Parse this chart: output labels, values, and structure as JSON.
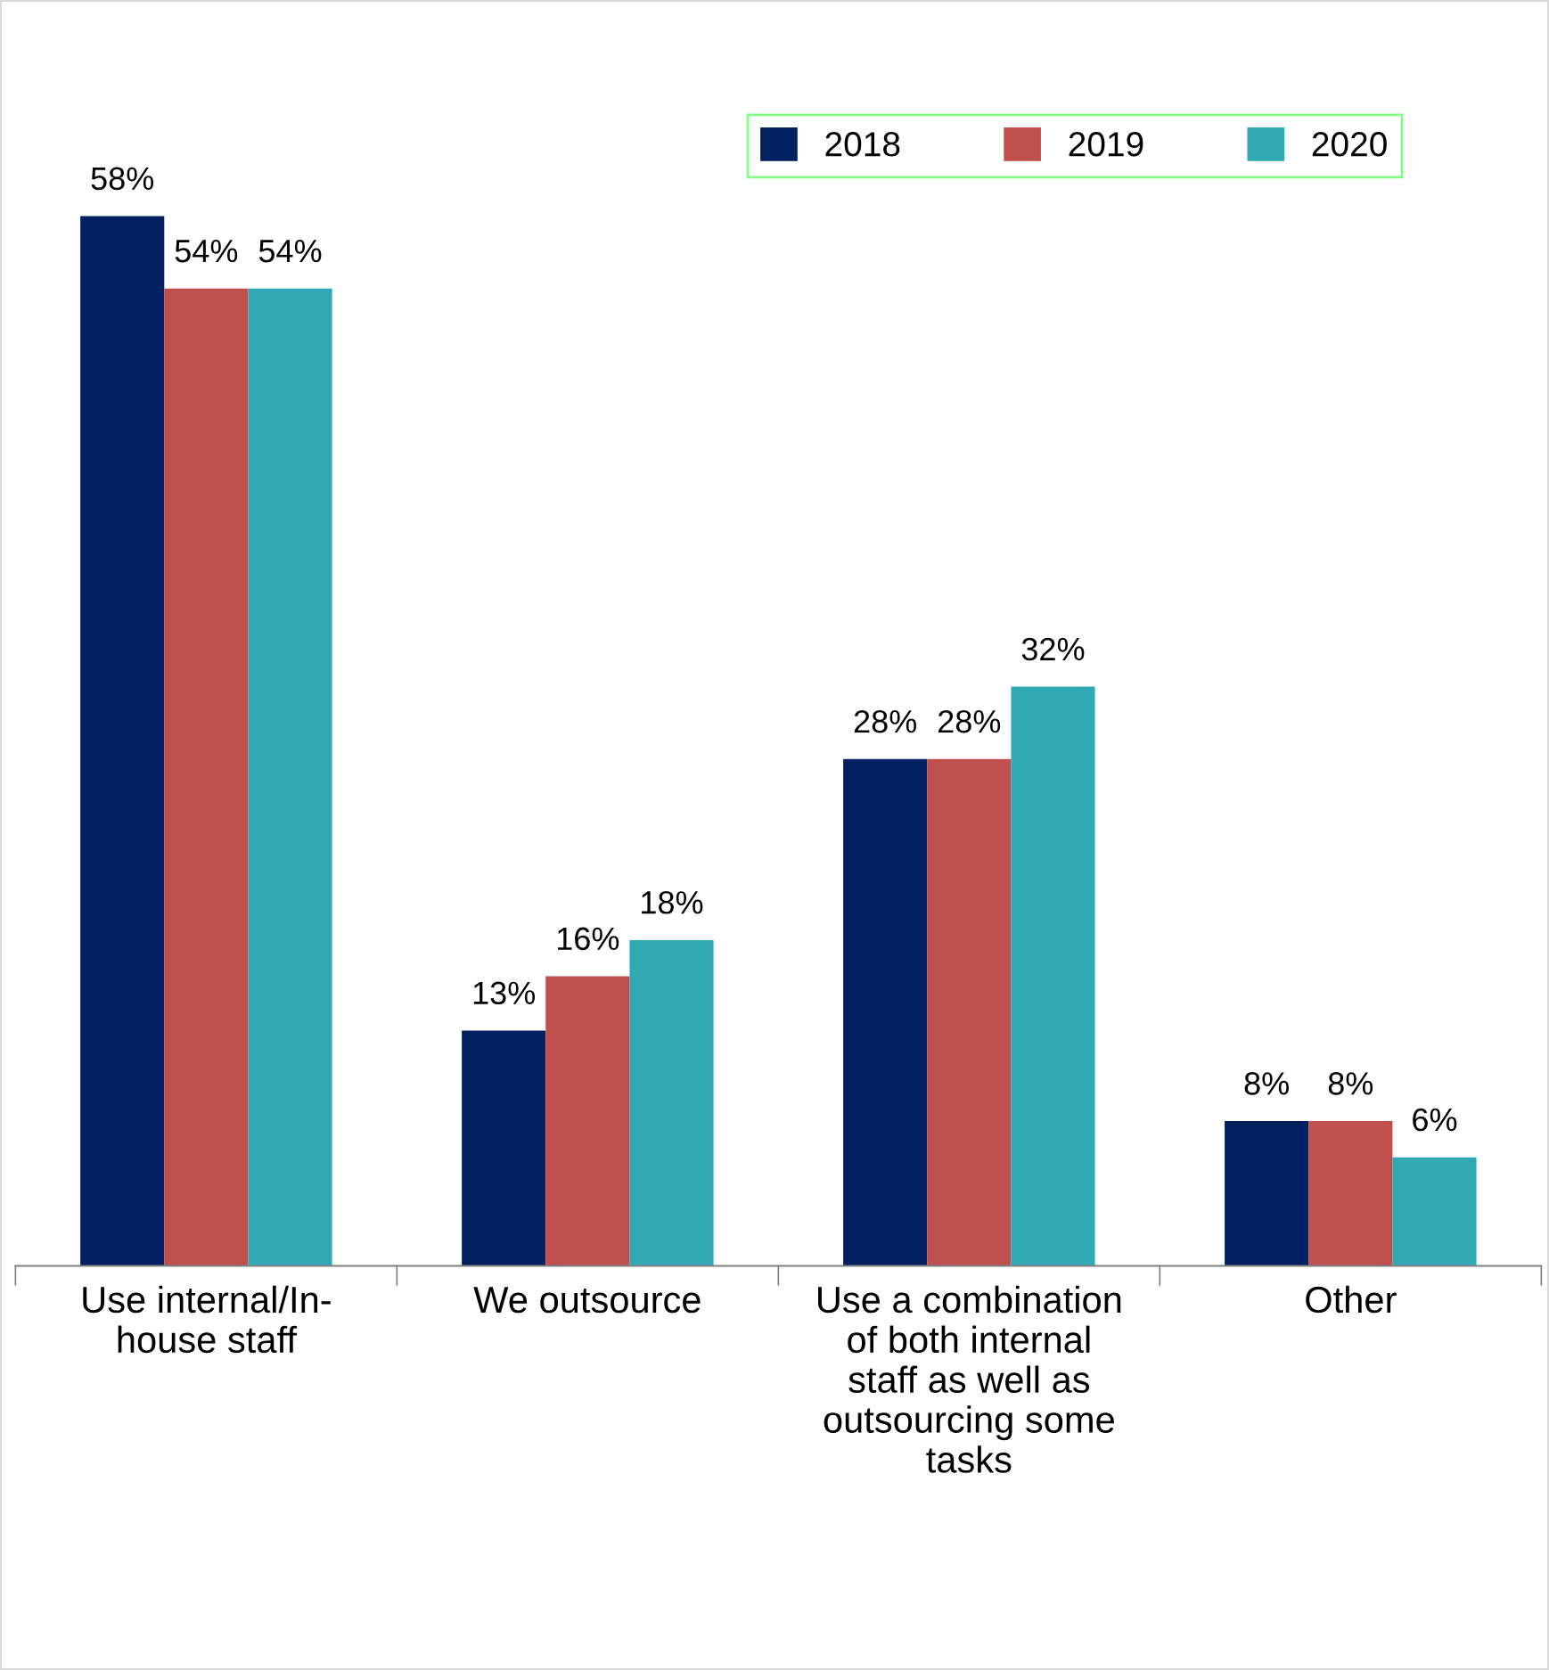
{
  "chart_data": {
    "type": "bar",
    "categories": [
      "Use internal/In-\nhouse staff",
      "We outsource",
      "Use a combination\nof both internal\nstaff as well as\noutsourcing some\ntasks",
      "Other"
    ],
    "series": [
      {
        "name": "2018",
        "color": "#002060",
        "values": [
          58,
          13,
          28,
          8
        ],
        "value_labels": [
          "58%",
          "13%",
          "28%",
          "8%"
        ]
      },
      {
        "name": "2019",
        "color": "#c0504d",
        "values": [
          54,
          16,
          28,
          8
        ],
        "value_labels": [
          "54%",
          "16%",
          "28%",
          "8%"
        ]
      },
      {
        "name": "2020",
        "color": "#31a9b5",
        "values": [
          54,
          18,
          32,
          6
        ],
        "value_labels": [
          "54%",
          "18%",
          "32%",
          "6%"
        ]
      }
    ],
    "legend": "top right",
    "grid": false
  }
}
